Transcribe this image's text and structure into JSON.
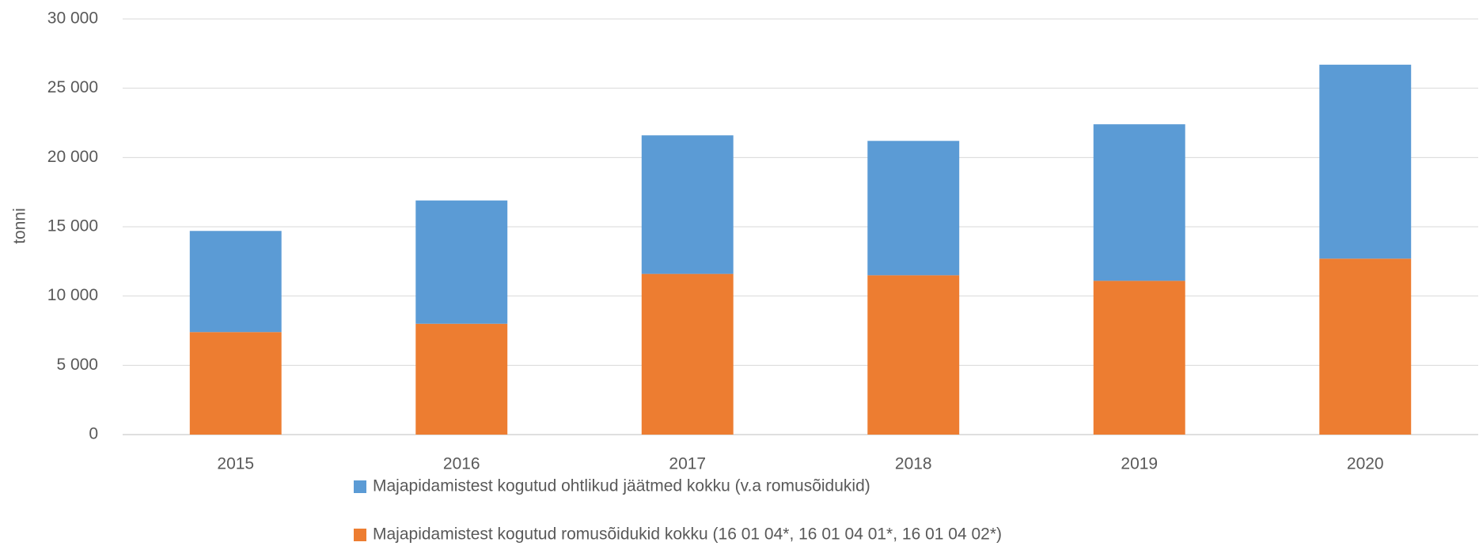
{
  "chart_data": {
    "type": "stacked_bar",
    "y_label": "tonni",
    "categories": [
      "2015",
      "2016",
      "2017",
      "2018",
      "2019",
      "2020"
    ],
    "series": [
      {
        "name": "Majapidamistest kogutud ohtlikud jäätmed kokku (v.a romusõidukid)",
        "color": "#5b9bd5",
        "values": [
          7300,
          8900,
          10000,
          9700,
          11300,
          14000
        ]
      },
      {
        "name": "Majapidamistest kogutud romusõidukid kokku (16 01 04*, 16 01 04 01*, 16 01 04 02*)",
        "color": "#ed7d31",
        "values": [
          7400,
          8000,
          11600,
          11500,
          11100,
          12700
        ]
      }
    ],
    "stack_order": [
      1,
      0
    ],
    "ylim": [
      0,
      30000
    ],
    "yticks": [
      0,
      {
        "value": 5000,
        "label": "5 000"
      },
      {
        "value": 10000,
        "label": "10 000"
      },
      {
        "value": 15000,
        "label": "15 000"
      },
      {
        "value": 20000,
        "label": "20 000"
      },
      {
        "value": 25000,
        "label": "25 000"
      },
      {
        "value": 30000,
        "label": "30 000"
      }
    ],
    "grid": true
  }
}
